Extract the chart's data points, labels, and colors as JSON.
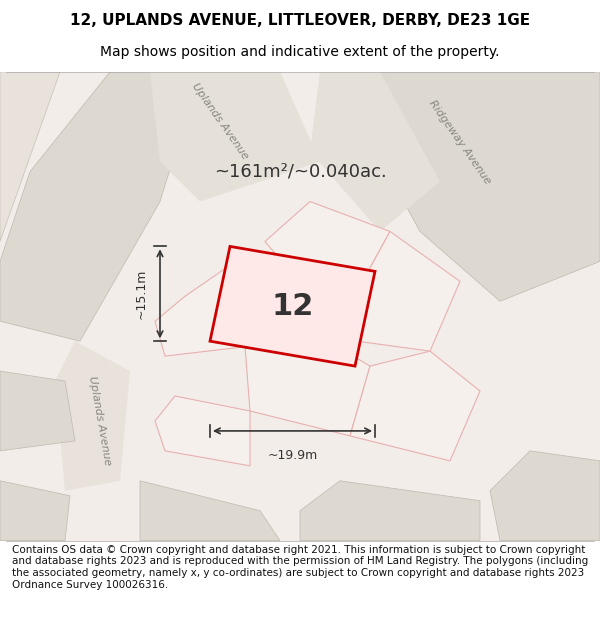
{
  "title_line1": "12, UPLANDS AVENUE, LITTLEOVER, DERBY, DE23 1GE",
  "title_line2": "Map shows position and indicative extent of the property.",
  "footer_text": "Contains OS data © Crown copyright and database right 2021. This information is subject to Crown copyright and database rights 2023 and is reproduced with the permission of HM Land Registry. The polygons (including the associated geometry, namely x, y co-ordinates) are subject to Crown copyright and database rights 2023 Ordnance Survey 100026316.",
  "area_text": "~161m²/~0.040ac.",
  "label_number": "12",
  "dim_width": "~19.9m",
  "dim_height": "~15.1m",
  "bg_color": "#f0eeeb",
  "map_bg": "#f5f3f0",
  "road_color": "#e8e0d8",
  "highlight_color": "#cc0000",
  "highlight_fill": "#ffcccc",
  "neighbor_color": "#d4ccc4",
  "neighbor_edge": "#c0b8b0",
  "street_label1": "Uplands Avenue",
  "street_label2": "Ridgeway Avenue",
  "street_label3": "Uplands Avenue",
  "title_fontsize": 11,
  "subtitle_fontsize": 10,
  "footer_fontsize": 7.5
}
